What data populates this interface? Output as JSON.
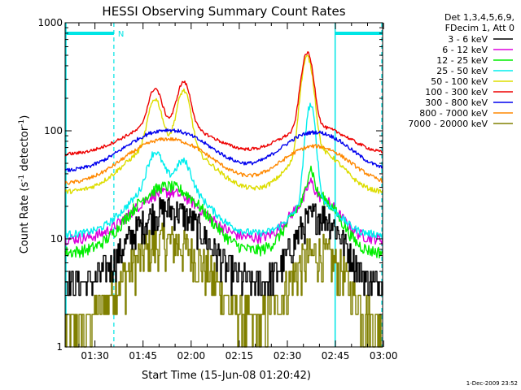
{
  "chart_data": {
    "type": "line",
    "title": "HESSI Observing Summary Count Rates",
    "xlabel": "Start Time (15-Jun-08 01:20:42)",
    "ylabel_main": "Count Rate (s",
    "ylabel_sup1": "-1",
    "ylabel_mid": " detector",
    "ylabel_sup2": "-1",
    "ylabel_end": ")",
    "xlim_minutes": [
      0,
      99
    ],
    "ylim": [
      1,
      1000
    ],
    "yscale": "log",
    "x_ticks": [
      {
        "label": "01:30",
        "min": 9.3
      },
      {
        "label": "01:45",
        "min": 24.3
      },
      {
        "label": "02:00",
        "min": 39.3
      },
      {
        "label": "02:15",
        "min": 54.3
      },
      {
        "label": "02:30",
        "min": 69.3
      },
      {
        "label": "02:45",
        "min": 84.3
      },
      {
        "label": "03:00",
        "min": 99.3
      }
    ],
    "y_ticks": [
      {
        "label": "1",
        "value": 1
      },
      {
        "label": "10",
        "value": 10
      },
      {
        "label": "100",
        "value": 100
      },
      {
        "label": "1000",
        "value": 1000
      }
    ],
    "legend_header": [
      "Det 1,3,4,5,6,9,",
      "FDecim 1, Att 0"
    ],
    "legend_position": "right",
    "night_boundaries_min": [
      0,
      15.2,
      84.2,
      99
    ],
    "night_label": "N",
    "series": [
      {
        "name": "3 - 6 keV",
        "color": "#000000",
        "base": 3.8,
        "noise": 0.35,
        "step": true,
        "peaks": [
          {
            "c": 32,
            "w": 9,
            "a": 15
          },
          {
            "c": 79,
            "w": 6,
            "a": 13
          }
        ]
      },
      {
        "name": "6 - 12 keV",
        "color": "#dd00dd",
        "base": 10,
        "noise": 0.12,
        "peaks": [
          {
            "c": 32,
            "w": 9,
            "a": 17
          },
          {
            "c": 78,
            "w": 6,
            "a": 15
          },
          {
            "c": 76.5,
            "w": 1,
            "a": 9
          }
        ]
      },
      {
        "name": "12 - 25 keV",
        "color": "#00ee00",
        "base": 7.5,
        "noise": 0.13,
        "peaks": [
          {
            "c": 32,
            "w": 9,
            "a": 23
          },
          {
            "c": 78,
            "w": 6,
            "a": 18
          },
          {
            "c": 76.5,
            "w": 1,
            "a": 20
          }
        ]
      },
      {
        "name": "25 - 50 keV",
        "color": "#00eeee",
        "base": 11,
        "noise": 0.08,
        "peaks": [
          {
            "c": 32,
            "w": 9,
            "a": 25
          },
          {
            "c": 78,
            "w": 6,
            "a": 12
          },
          {
            "c": 28,
            "w": 2,
            "a": 30
          },
          {
            "c": 37,
            "w": 2,
            "a": 20
          },
          {
            "c": 76.5,
            "w": 1.3,
            "a": 150
          }
        ]
      },
      {
        "name": "50 - 100 keV",
        "color": "#dddd00",
        "base": 27,
        "noise": 0.05,
        "peaks": [
          {
            "c": 32,
            "w": 10,
            "a": 55
          },
          {
            "c": 78,
            "w": 7,
            "a": 40
          },
          {
            "c": 28,
            "w": 1.8,
            "a": 120
          },
          {
            "c": 37,
            "w": 1.8,
            "a": 160
          },
          {
            "c": 75.5,
            "w": 1.6,
            "a": 420
          }
        ]
      },
      {
        "name": "100 - 300 keV",
        "color": "#ee0000",
        "base": 60,
        "noise": 0.035,
        "peaks": [
          {
            "c": 32,
            "w": 11,
            "a": 60
          },
          {
            "c": 78,
            "w": 9,
            "a": 50
          },
          {
            "c": 28,
            "w": 1.8,
            "a": 130
          },
          {
            "c": 37,
            "w": 1.8,
            "a": 170
          },
          {
            "c": 75.5,
            "w": 1.6,
            "a": 420
          }
        ]
      },
      {
        "name": "300 - 800 keV",
        "color": "#0000ee",
        "base": 42,
        "noise": 0.04,
        "peaks": [
          {
            "c": 32,
            "w": 11,
            "a": 60
          },
          {
            "c": 78,
            "w": 9,
            "a": 55
          }
        ]
      },
      {
        "name": "800 - 7000 keV",
        "color": "#ff8800",
        "base": 32,
        "noise": 0.04,
        "peaks": [
          {
            "c": 32,
            "w": 11,
            "a": 52
          },
          {
            "c": 78,
            "w": 9,
            "a": 40
          }
        ]
      },
      {
        "name": "7000 - 20000 keV",
        "color": "#808000",
        "base": 1.4,
        "noise": 0.5,
        "step": true,
        "peaks": [
          {
            "c": 32,
            "w": 10,
            "a": 8
          },
          {
            "c": 79,
            "w": 7,
            "a": 6
          }
        ]
      }
    ],
    "timestamp": "1-Dec-2009 23:52"
  }
}
